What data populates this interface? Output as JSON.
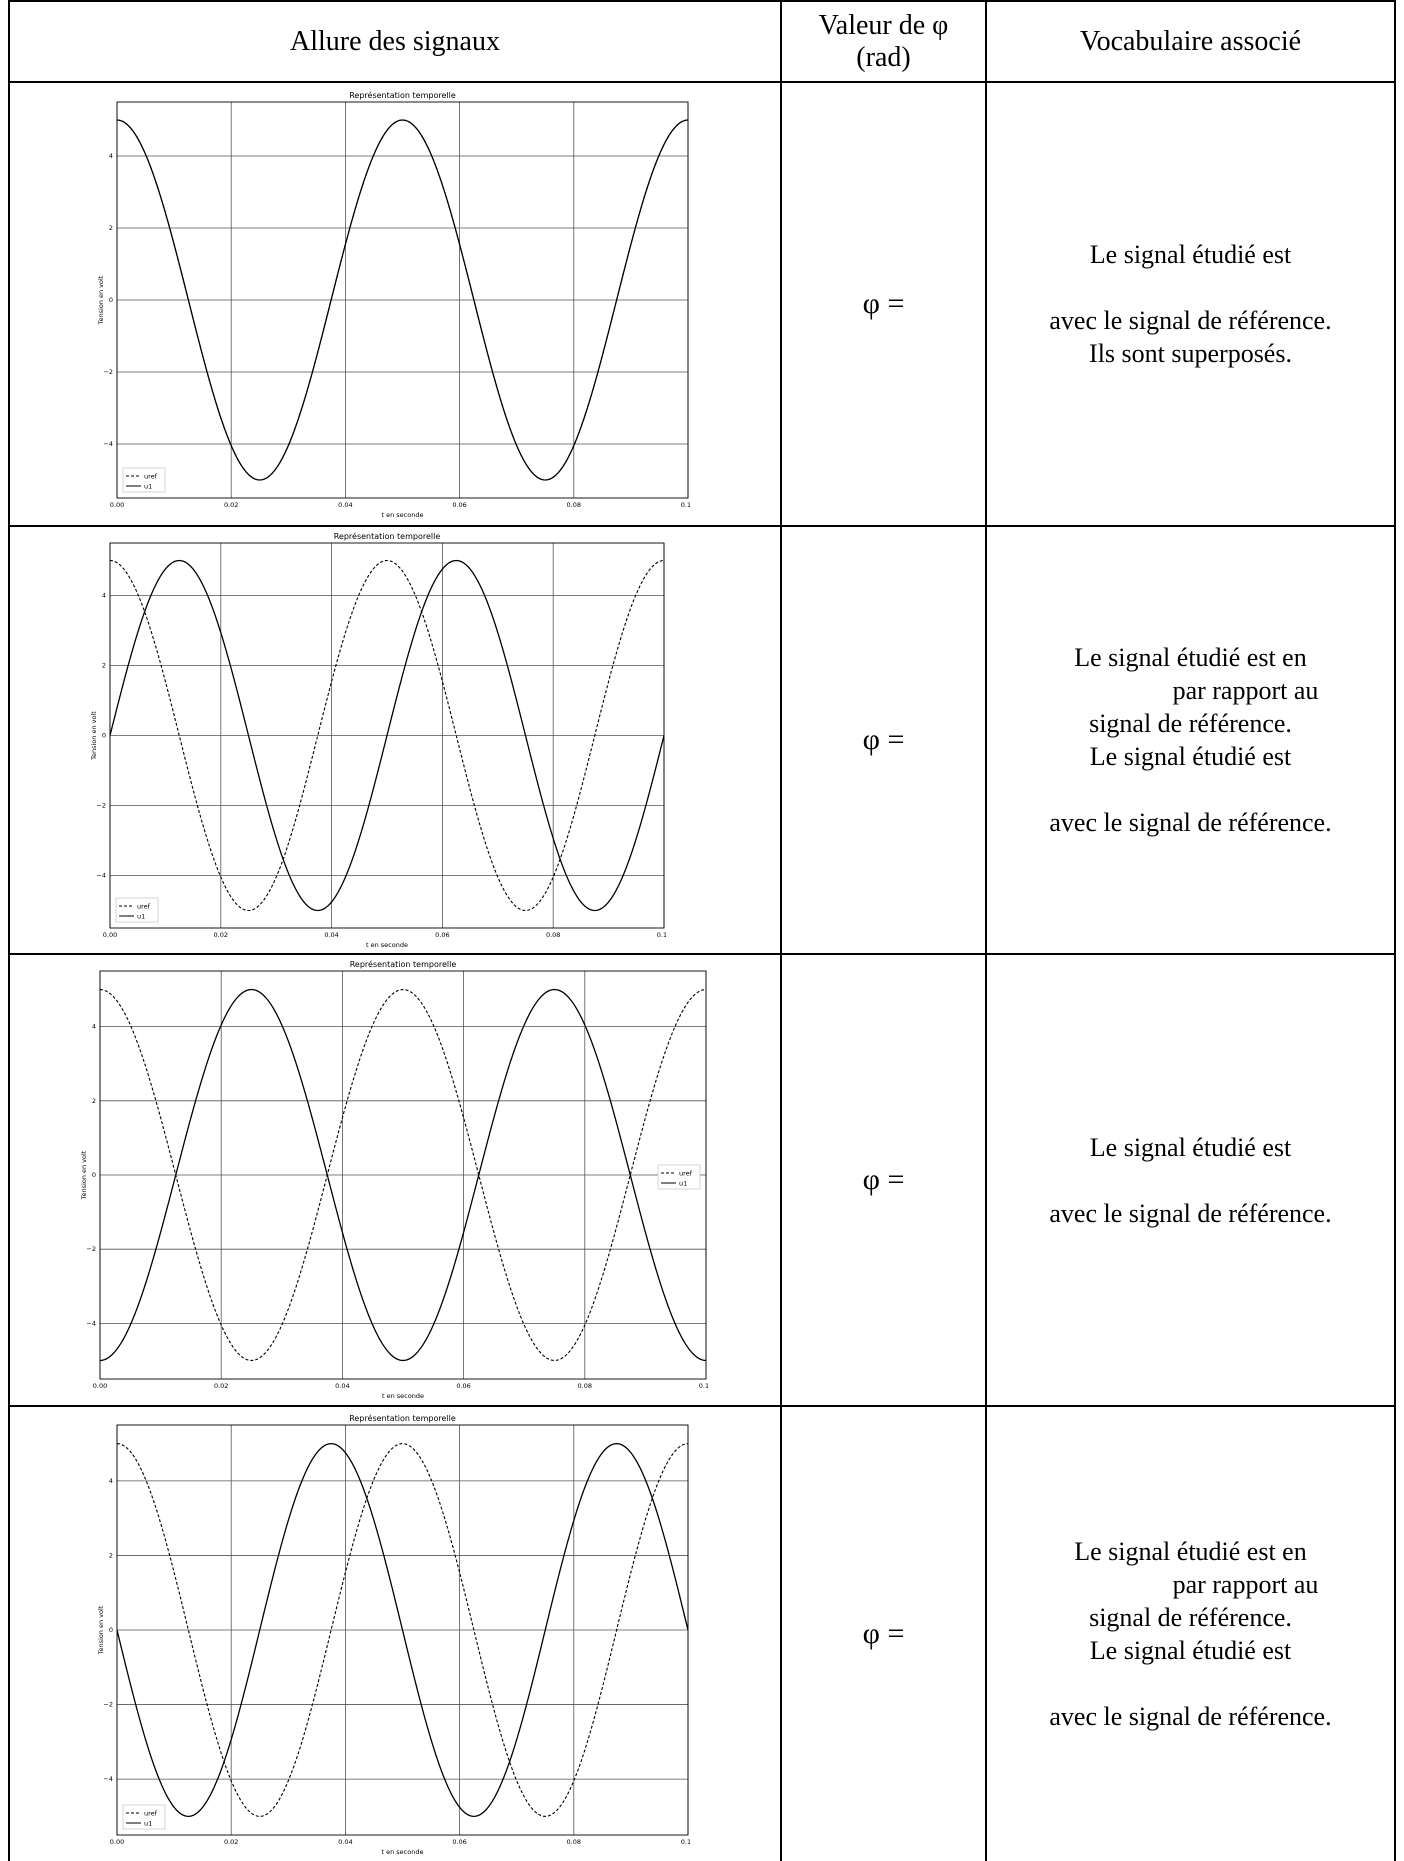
{
  "header": {
    "col1": "Allure des signaux",
    "col2_line1": "Valeur de φ",
    "col2_line2": "(rad)",
    "col3": "Vocabulaire associé"
  },
  "rows": [
    {
      "phi": "φ =",
      "vocab": [
        "Le signal étudié est",
        "",
        "avec le signal de référence.",
        "Ils sont superposés."
      ]
    },
    {
      "phi": "φ =",
      "vocab": [
        "Le signal étudié est en",
        "par rapport au",
        "signal de référence.",
        "Le signal étudié est",
        "",
        "avec le signal de référence."
      ]
    },
    {
      "phi": "φ =",
      "vocab": [
        "Le signal étudié est",
        "",
        "avec le signal de référence."
      ]
    },
    {
      "phi": "φ =",
      "vocab": [
        "Le signal étudié est en",
        "par rapport au",
        "signal de référence.",
        "Le signal étudié est",
        "",
        "avec le signal de référence."
      ]
    }
  ],
  "chart_data": [
    {
      "type": "line",
      "title": "Représentation temporelle",
      "xlabel": "t en seconde",
      "ylabel": "Tension en volt",
      "xlim": [
        0,
        0.1
      ],
      "ylim": [
        -5.5,
        5.5
      ],
      "xticks": [
        "0.00",
        "0.02",
        "0.04",
        "0.06",
        "0.08",
        "0.10"
      ],
      "yticks": [
        "-4",
        "-2",
        "0",
        "2",
        "4"
      ],
      "grid": true,
      "legend": "bottom-left",
      "series": [
        {
          "name": "uref",
          "style": "dashed",
          "amplitude": 5,
          "period": 0.05,
          "phase_rad": 0
        },
        {
          "name": "u1",
          "style": "solid",
          "amplitude": 5,
          "period": 0.05,
          "phase_rad": 0
        }
      ]
    },
    {
      "type": "line",
      "title": "Représentation temporelle",
      "xlabel": "t en seconde",
      "ylabel": "Tension en volt",
      "xlim": [
        0,
        0.1
      ],
      "ylim": [
        -5.5,
        5.5
      ],
      "xticks": [
        "0.00",
        "0.02",
        "0.04",
        "0.06",
        "0.08",
        "0.10"
      ],
      "yticks": [
        "-4",
        "-2",
        "0",
        "2",
        "4"
      ],
      "grid": true,
      "legend": "bottom-left",
      "series": [
        {
          "name": "uref",
          "style": "dashed",
          "amplitude": 5,
          "period": 0.05,
          "phase_rad": 0
        },
        {
          "name": "u1",
          "style": "solid",
          "amplitude": 5,
          "period": 0.05,
          "phase_rad": 1.5708
        }
      ]
    },
    {
      "type": "line",
      "title": "Représentation temporelle",
      "xlabel": "t en seconde",
      "ylabel": "Tension en volt",
      "xlim": [
        0,
        0.1
      ],
      "ylim": [
        -5.5,
        5.5
      ],
      "xticks": [
        "0.00",
        "0.02",
        "0.04",
        "0.06",
        "0.08",
        "0.10"
      ],
      "yticks": [
        "-4",
        "-2",
        "0",
        "2",
        "4"
      ],
      "grid": true,
      "legend": "center-right",
      "series": [
        {
          "name": "uref",
          "style": "dashed",
          "amplitude": 5,
          "period": 0.05,
          "phase_rad": 0
        },
        {
          "name": "u1",
          "style": "solid",
          "amplitude": 5,
          "period": 0.05,
          "phase_rad": 3.1416
        }
      ]
    },
    {
      "type": "line",
      "title": "Représentation temporelle",
      "xlabel": "t en seconde",
      "ylabel": "Tension en volt",
      "xlim": [
        0,
        0.1
      ],
      "ylim": [
        -5.5,
        5.5
      ],
      "xticks": [
        "0.00",
        "0.02",
        "0.04",
        "0.06",
        "0.08",
        "0.10"
      ],
      "yticks": [
        "-4",
        "-2",
        "0",
        "2",
        "4"
      ],
      "grid": true,
      "legend": "bottom-left",
      "series": [
        {
          "name": "uref",
          "style": "dashed",
          "amplitude": 5,
          "period": 0.05,
          "phase_rad": 0
        },
        {
          "name": "u1",
          "style": "solid",
          "amplitude": 5,
          "period": 0.05,
          "phase_rad": -1.5708
        }
      ]
    }
  ]
}
